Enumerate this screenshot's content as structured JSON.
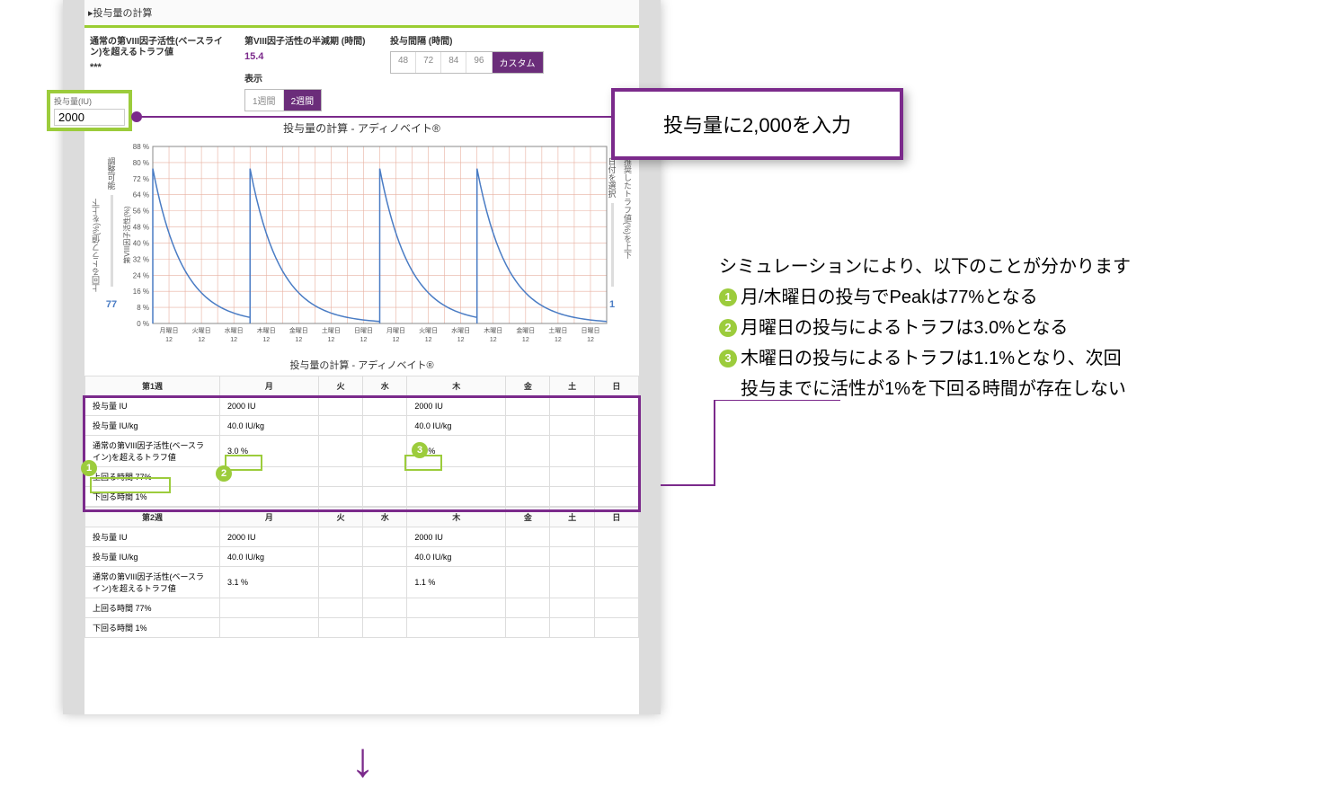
{
  "colors": {
    "purple": "#7b2a8b",
    "green": "#9ccc3c",
    "blue_line": "#4a7cc4",
    "grid_red": "#e8b0a0",
    "grid_light": "#eeeeee"
  },
  "section_title": "▸投与量の計算",
  "controls": {
    "trough_label": "通常の第VIII因子活性(ベースライン)を超えるトラフ値",
    "trough_val": "***",
    "halflife_label": "第VIII因子活性の半減期 (時間)",
    "halflife_val": "15.4",
    "display_label": "表示",
    "display_opts": [
      "1週間",
      "2週間"
    ],
    "display_active": 1,
    "interval_label": "投与間隔 (時間)",
    "interval_opts": [
      "48",
      "72",
      "84",
      "96",
      "カスタム"
    ],
    "interval_active": 4
  },
  "dose_input": {
    "label": "投与量(IU)",
    "value": "2000"
  },
  "annot1": "投与量に2,000を入力",
  "chart": {
    "title": "投与量の計算 - アディノベイト®",
    "y_ticks": [
      "88 %",
      "80 %",
      "72 %",
      "64 %",
      "56 %",
      "48 %",
      "40 %",
      "32 %",
      "24 %",
      "16 %",
      "8 %",
      "0 %"
    ],
    "y_max": 88,
    "peak": 77,
    "x_days": [
      "月曜日",
      "火曜日",
      "水曜日",
      "木曜日",
      "金曜日",
      "土曜日",
      "日曜日",
      "月曜日",
      "火曜日",
      "水曜日",
      "木曜日",
      "金曜日",
      "土曜日",
      "日曜日"
    ],
    "x_hours": "12",
    "left_axis_label": "上回るトラフ値(%)を上下",
    "left_slider_label": "調整可能",
    "left_slider_val": "77",
    "right_axis_label": "推奨したトラフ値(%)を上下",
    "right_slider_label": "日付を選択",
    "right_slider_val": "1",
    "yaxis_title": "第VIII因子活性(%)"
  },
  "table_title": "投与量の計算 - アディノベイト®",
  "days_hdr": [
    "月",
    "火",
    "水",
    "木",
    "金",
    "土",
    "日"
  ],
  "week1": {
    "name": "第1週",
    "rows": [
      {
        "label": "投与量 IU",
        "mon": "2000 IU",
        "thu": "2000 IU"
      },
      {
        "label": "投与量 IU/kg",
        "mon": "40.0 IU/kg",
        "thu": "40.0 IU/kg"
      },
      {
        "label": "通常の第VIII因子活性(ベースライン)を超えるトラフ値",
        "mon": "3.0 %",
        "thu": "1.1 %"
      },
      {
        "label": "上回る時間 77%"
      },
      {
        "label": "下回る時間 1%"
      }
    ]
  },
  "week2": {
    "name": "第2週",
    "rows": [
      {
        "label": "投与量 IU",
        "mon": "2000 IU",
        "thu": "2000 IU"
      },
      {
        "label": "投与量 IU/kg",
        "mon": "40.0 IU/kg",
        "thu": "40.0 IU/kg"
      },
      {
        "label": "通常の第VIII因子活性(ベースライン)を超えるトラフ値",
        "mon": "3.1 %",
        "thu": "1.1 %"
      },
      {
        "label": "上回る時間 77%"
      },
      {
        "label": "下回る時間 1%"
      }
    ]
  },
  "sim_text": {
    "intro": "シミュレーションにより、以下のことが分かります",
    "b1": "月/木曜日の投与でPeakは77%となる",
    "b2": "月曜日の投与によるトラフは3.0%となる",
    "b3a": "木曜日の投与によるトラフは1.1%となり、次回",
    "b3b": "投与までに活性が1%を下回る時間が存在しない"
  }
}
